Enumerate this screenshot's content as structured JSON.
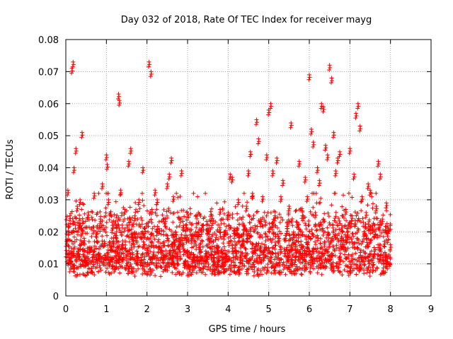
{
  "chart_data": {
    "type": "scatter",
    "title": "Day 032 of 2018, Rate Of TEC Index for receiver mayg",
    "xlabel": "GPS time / hours",
    "ylabel": "ROTI / TECUs",
    "xlim": [
      0,
      9
    ],
    "ylim": [
      0,
      0.08
    ],
    "x_ticks": [
      0,
      1,
      2,
      3,
      4,
      5,
      6,
      7,
      8,
      9
    ],
    "y_ticks": [
      0,
      0.01,
      0.02,
      0.03,
      0.04,
      0.05,
      0.06,
      0.07,
      0.08
    ],
    "y_tick_labels": [
      "0",
      "0.01",
      "0.02",
      "0.03",
      "0.04",
      "0.05",
      "0.06",
      "0.07",
      "0.08"
    ],
    "x_tick_labels": [
      "0",
      "1",
      "2",
      "3",
      "4",
      "5",
      "6",
      "7",
      "8",
      "9"
    ],
    "grid": true,
    "marker": "+",
    "marker_color": "#ff0000",
    "series": [
      {
        "name": "ROTI",
        "x": [
          0.02,
          0.05,
          0.08,
          0.1,
          0.15,
          0.18,
          0.2,
          0.25,
          0.28,
          0.3,
          0.32,
          0.35,
          0.4,
          0.45,
          0.5,
          0.55,
          0.6,
          0.65,
          0.7,
          0.75,
          0.8,
          0.85,
          0.9,
          0.95,
          1.0,
          1.02,
          1.05,
          1.1,
          1.15,
          1.2,
          1.25,
          1.3,
          1.32,
          1.35,
          1.4,
          1.45,
          1.5,
          1.55,
          1.6,
          1.65,
          1.7,
          1.75,
          1.8,
          1.85,
          1.9,
          1.95,
          2.0,
          2.05,
          2.1,
          2.12,
          2.15,
          2.2,
          2.25,
          2.3,
          2.35,
          2.4,
          2.45,
          2.5,
          2.55,
          2.6,
          2.65,
          2.7,
          2.75,
          2.8,
          2.85,
          2.9,
          2.95,
          3.0,
          3.05,
          3.1,
          3.15,
          3.2,
          3.25,
          3.3,
          3.35,
          3.4,
          3.45,
          3.5,
          3.55,
          3.6,
          3.65,
          3.7,
          3.75,
          3.8,
          3.85,
          3.9,
          3.95,
          4.0,
          4.05,
          4.1,
          4.15,
          4.2,
          4.25,
          4.3,
          4.35,
          4.4,
          4.45,
          4.5,
          4.55,
          4.6,
          4.65,
          4.7,
          4.75,
          4.8,
          4.85,
          4.9,
          4.95,
          5.0,
          5.05,
          5.1,
          5.15,
          5.2,
          5.25,
          5.3,
          5.35,
          5.4,
          5.45,
          5.5,
          5.55,
          5.6,
          5.65,
          5.7,
          5.75,
          5.8,
          5.85,
          5.9,
          5.95,
          6.0,
          6.05,
          6.1,
          6.15,
          6.2,
          6.25,
          6.3,
          6.35,
          6.4,
          6.45,
          6.5,
          6.55,
          6.6,
          6.65,
          6.7,
          6.75,
          6.8,
          6.85,
          6.9,
          6.95,
          7.0,
          7.05,
          7.1,
          7.15,
          7.2,
          7.25,
          7.3,
          7.35,
          7.4,
          7.45,
          7.5,
          7.55,
          7.6,
          7.65,
          7.7,
          7.75,
          7.8,
          7.85,
          7.9,
          7.95,
          8.0
        ],
        "y": [
          0.017,
          0.033,
          0.012,
          0.025,
          0.071,
          0.073,
          0.04,
          0.046,
          0.028,
          0.014,
          0.022,
          0.03,
          0.051,
          0.018,
          0.011,
          0.026,
          0.015,
          0.012,
          0.032,
          0.02,
          0.013,
          0.024,
          0.035,
          0.017,
          0.044,
          0.041,
          0.03,
          0.012,
          0.022,
          0.009,
          0.018,
          0.063,
          0.061,
          0.033,
          0.016,
          0.027,
          0.011,
          0.042,
          0.046,
          0.019,
          0.025,
          0.014,
          0.03,
          0.012,
          0.04,
          0.021,
          0.015,
          0.073,
          0.07,
          0.027,
          0.013,
          0.033,
          0.03,
          0.021,
          0.015,
          0.012,
          0.024,
          0.035,
          0.038,
          0.043,
          0.031,
          0.02,
          0.013,
          0.017,
          0.039,
          0.022,
          0.011,
          0.014,
          0.009,
          0.018,
          0.013,
          0.02,
          0.012,
          0.016,
          0.022,
          0.01,
          0.014,
          0.021,
          0.018,
          0.025,
          0.012,
          0.019,
          0.015,
          0.027,
          0.011,
          0.02,
          0.013,
          0.026,
          0.038,
          0.037,
          0.021,
          0.014,
          0.03,
          0.012,
          0.017,
          0.022,
          0.028,
          0.039,
          0.045,
          0.032,
          0.015,
          0.055,
          0.049,
          0.024,
          0.031,
          0.016,
          0.044,
          0.058,
          0.06,
          0.039,
          0.025,
          0.043,
          0.018,
          0.031,
          0.036,
          0.014,
          0.021,
          0.028,
          0.054,
          0.019,
          0.012,
          0.023,
          0.042,
          0.016,
          0.025,
          0.037,
          0.031,
          0.069,
          0.052,
          0.048,
          0.026,
          0.04,
          0.036,
          0.06,
          0.059,
          0.047,
          0.044,
          0.072,
          0.068,
          0.051,
          0.039,
          0.043,
          0.045,
          0.022,
          0.016,
          0.027,
          0.019,
          0.046,
          0.025,
          0.038,
          0.057,
          0.06,
          0.053,
          0.031,
          0.02,
          0.026,
          0.035,
          0.033,
          0.022,
          0.014,
          0.028,
          0.042,
          0.038,
          0.024,
          0.017,
          0.029,
          0.021,
          0.016
        ]
      }
    ],
    "dense_band": {
      "description": "baseline scatter",
      "x_range": [
        0,
        8
      ],
      "y_range": [
        0.003,
        0.032
      ],
      "count": 2600
    }
  }
}
